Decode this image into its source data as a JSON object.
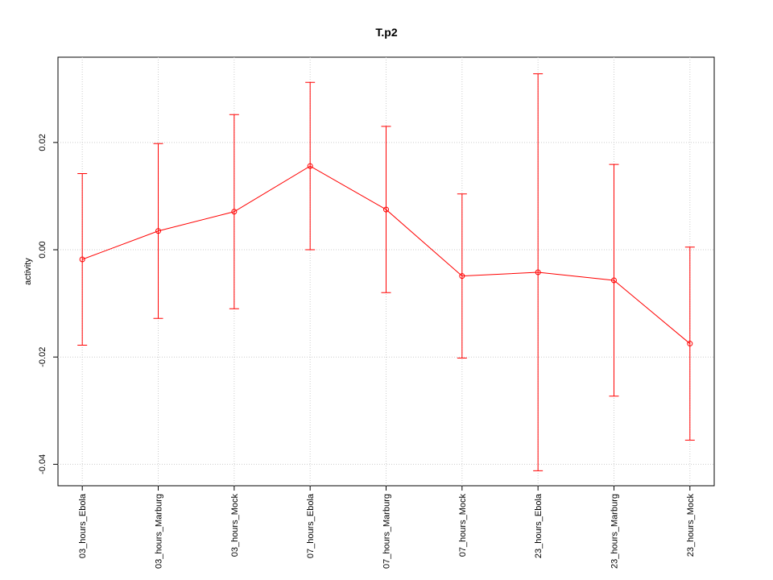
{
  "chart_data": {
    "type": "line",
    "title": "T.p2",
    "ylabel": "activity",
    "categories": [
      "03_hours_Ebola",
      "03_hours_Marburg",
      "03_hours_Mock",
      "07_hours_Ebola",
      "07_hours_Marburg",
      "07_hours_Mock",
      "23_hours_Ebola",
      "23_hours_Marburg",
      "23_hours_Mock"
    ],
    "series": [
      {
        "name": "T.p2",
        "color": "#ff0000",
        "values": [
          -0.0018,
          0.0035,
          0.0071,
          0.0156,
          0.0075,
          -0.0049,
          -0.0042,
          -0.0057,
          -0.0175
        ],
        "errors": [
          0.016,
          0.0163,
          0.0181,
          0.0156,
          0.0155,
          0.0153,
          0.037,
          0.0216,
          0.018
        ]
      }
    ],
    "ylim": [
      -0.044,
      0.0359
    ],
    "yticks": [
      -0.04,
      -0.02,
      {
        "value": 0,
        "label": "0.00"
      },
      0.02
    ],
    "grid": true
  }
}
